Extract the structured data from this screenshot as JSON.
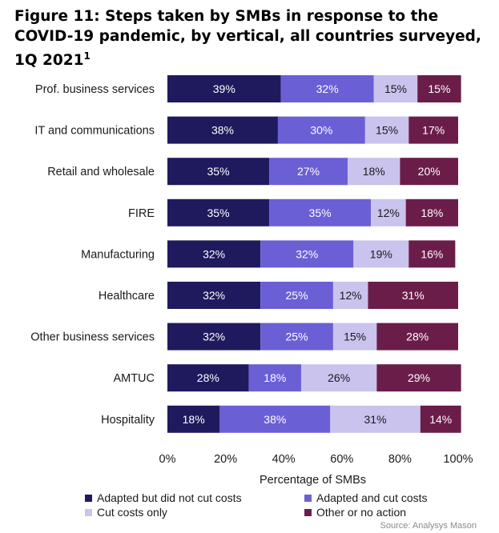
{
  "title": "Figure 11: Steps taken by SMBs in response to the COVID-19 pandemic, by vertical, all countries surveyed, 1Q 2021",
  "title_footnote": "1",
  "source": "Source: Analysys Mason",
  "chart_data": {
    "type": "bar",
    "orientation": "horizontal",
    "stacked": true,
    "title": "Figure 11: Steps taken by SMBs in response to the COVID-19 pandemic, by vertical, all countries surveyed, 1Q 2021",
    "xlabel": "Percentage of SMBs",
    "ylabel": "",
    "xlim": [
      0,
      100
    ],
    "xticks": [
      "0%",
      "20%",
      "40%",
      "60%",
      "80%",
      "100%"
    ],
    "categories": [
      "Prof. business services",
      "IT and communications",
      "Retail and wholesale",
      "FIRE",
      "Manufacturing",
      "Healthcare",
      "Other business services",
      "AMTUC",
      "Hospitality"
    ],
    "series": [
      {
        "name": "Adapted but did not cut costs",
        "color": "#1f1a5e",
        "label_color": "#ffffff",
        "values": [
          39,
          38,
          35,
          35,
          32,
          32,
          32,
          28,
          18
        ]
      },
      {
        "name": "Adapted and cut costs",
        "color": "#6b5fd6",
        "label_color": "#ffffff",
        "values": [
          32,
          30,
          27,
          35,
          32,
          25,
          25,
          18,
          38
        ]
      },
      {
        "name": "Cut costs only",
        "color": "#c9c3ee",
        "label_color": "#1a1a1a",
        "values": [
          15,
          15,
          18,
          12,
          19,
          12,
          15,
          26,
          31
        ]
      },
      {
        "name": "Other or no action",
        "color": "#6b1d4a",
        "label_color": "#ffffff",
        "values": [
          15,
          17,
          20,
          18,
          16,
          31,
          28,
          29,
          14
        ]
      }
    ],
    "grid": false,
    "legend_position": "bottom"
  }
}
